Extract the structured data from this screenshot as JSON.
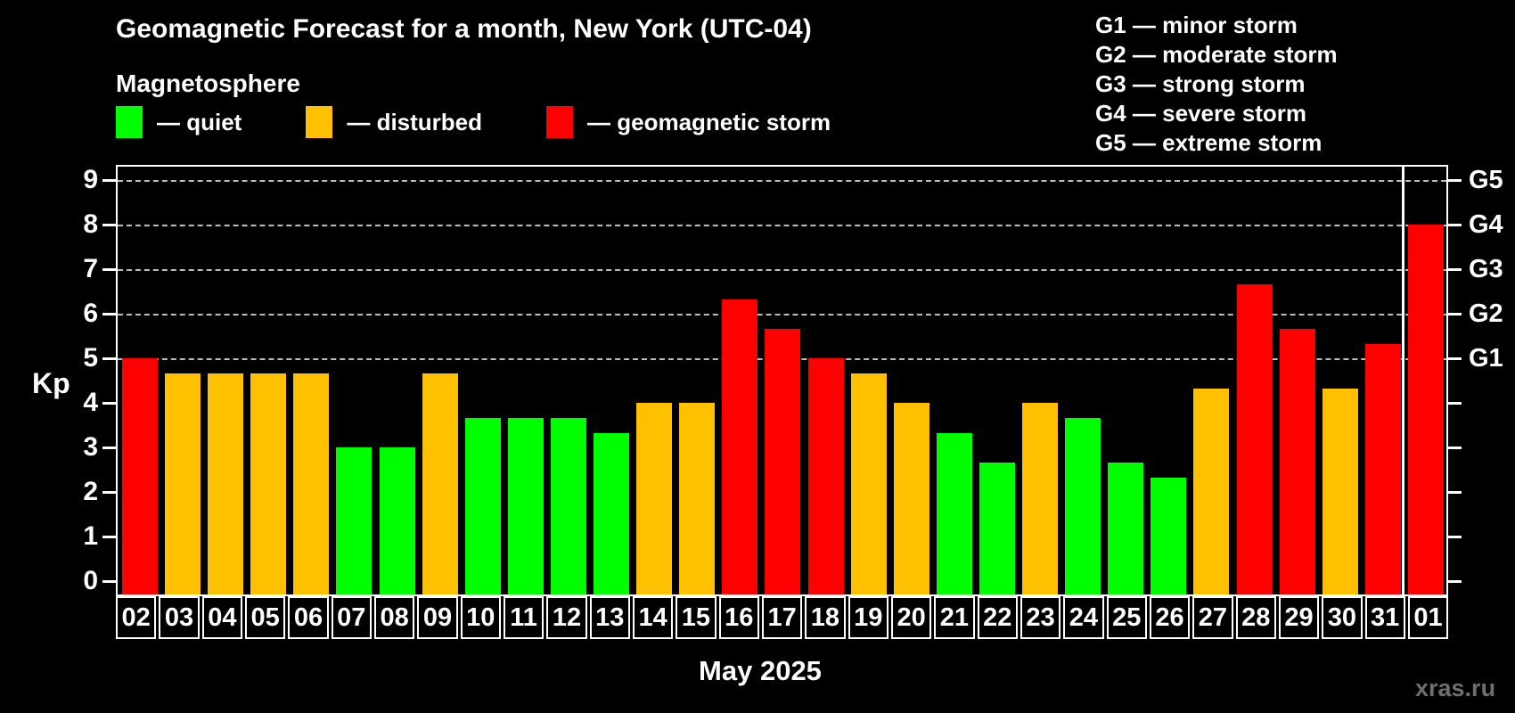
{
  "header": {
    "title": "Geomagnetic Forecast for a month, New York (UTC-04)",
    "subtitle": "Magnetosphere"
  },
  "legend": {
    "items": [
      {
        "state": "quiet",
        "label": "— quiet"
      },
      {
        "state": "disturbed",
        "label": "— disturbed"
      },
      {
        "state": "storm",
        "label": "— geomagnetic storm"
      }
    ]
  },
  "g_legend": {
    "items": [
      "G1 — minor storm",
      "G2 — moderate storm",
      "G3 — strong storm",
      "G4 — severe storm",
      "G5 — extreme storm"
    ]
  },
  "chart_data": {
    "type": "bar",
    "title": "Geomagnetic Forecast for a month, New York (UTC-04)",
    "subtitle": "Magnetosphere",
    "ylabel": "Kp",
    "xlabel": "May 2025",
    "categories": [
      "02",
      "03",
      "04",
      "05",
      "06",
      "07",
      "08",
      "09",
      "10",
      "11",
      "12",
      "13",
      "14",
      "15",
      "16",
      "17",
      "18",
      "19",
      "20",
      "21",
      "22",
      "23",
      "24",
      "25",
      "26",
      "27",
      "28",
      "29",
      "30",
      "31",
      "01"
    ],
    "values": [
      5,
      4.67,
      4.67,
      4.67,
      4.67,
      3,
      3,
      4.67,
      3.67,
      3.67,
      3.67,
      3.33,
      4,
      4,
      6.33,
      5.67,
      5,
      4.67,
      4,
      3.33,
      2.67,
      4,
      3.67,
      2.67,
      2.33,
      4.33,
      6.67,
      5.67,
      4.33,
      5.33,
      8
    ],
    "states": [
      "storm",
      "disturbed",
      "disturbed",
      "disturbed",
      "disturbed",
      "quiet",
      "quiet",
      "disturbed",
      "quiet",
      "quiet",
      "quiet",
      "quiet",
      "disturbed",
      "disturbed",
      "storm",
      "storm",
      "storm",
      "disturbed",
      "disturbed",
      "quiet",
      "quiet",
      "disturbed",
      "quiet",
      "quiet",
      "quiet",
      "disturbed",
      "storm",
      "storm",
      "disturbed",
      "storm",
      "storm"
    ],
    "state_colors": {
      "quiet": "#00ff00",
      "disturbed": "#ffc000",
      "storm": "#ff0000"
    },
    "yticks": [
      0,
      1,
      2,
      3,
      4,
      5,
      6,
      7,
      8,
      9
    ],
    "ylim": [
      0,
      9.3
    ],
    "grid": "dashed horizontal at storm levels",
    "gridline_kp": [
      5,
      6,
      7,
      8,
      9
    ],
    "right_axis": {
      "labels": [
        "G1",
        "G2",
        "G3",
        "G4",
        "G5"
      ],
      "kp": [
        5,
        6,
        7,
        8,
        9
      ]
    },
    "month_separator_after_index": 29,
    "legend_position": "top"
  },
  "footer": {
    "month_label": "May 2025",
    "watermark": "xras.ru"
  }
}
